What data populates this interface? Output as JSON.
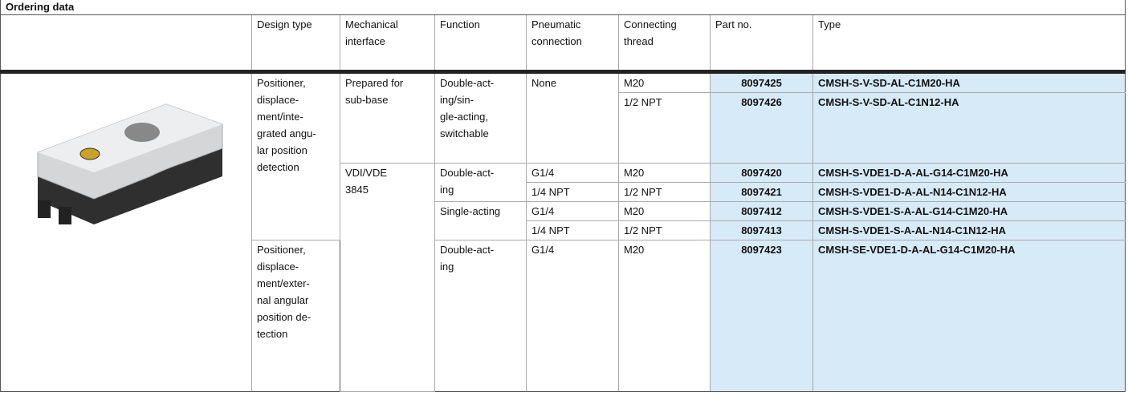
{
  "title": "Ordering data",
  "table": {
    "header": [
      [
        "Design type"
      ],
      [
        "Mechanical",
        "interface"
      ],
      [
        "Function"
      ],
      [
        "Pneumatic",
        "connection"
      ],
      [
        "Connecting",
        "thread"
      ],
      [
        "Part no."
      ],
      [
        "Type"
      ]
    ],
    "design_type": [
      [
        "Positioner,",
        "displace-",
        "ment/inte-",
        "grated angu-",
        "lar position",
        "detection"
      ],
      [
        "Positioner,",
        "displace-",
        "ment/exter-",
        "nal angular",
        "position de-",
        "tection"
      ]
    ],
    "mechanical_interface": [
      [
        "Prepared for",
        "sub-base"
      ],
      [
        "VDI/VDE",
        "3845"
      ]
    ],
    "function": [
      [
        "Double-act-",
        "ing/sin-",
        "gle-acting,",
        "switchable"
      ],
      [
        "Double-act-",
        "ing"
      ],
      [
        "Single-acting"
      ],
      [
        "Double-act-",
        "ing"
      ]
    ],
    "pneumatic_connection": [
      "None",
      "G1/4",
      "1/4 NPT",
      "G1/4",
      "1/4 NPT",
      "G1/4"
    ],
    "connecting_thread": [
      "M20",
      "1/2 NPT",
      "M20",
      "1/2 NPT",
      "M20",
      "1/2 NPT",
      "M20"
    ],
    "part_no": [
      "8097425",
      "8097426",
      "8097420",
      "8097421",
      "8097412",
      "8097413",
      "8097423"
    ],
    "type": [
      "CMSH-S-V-SD-AL-C1M20-HA",
      "CMSH-S-V-SD-AL-C1N12-HA",
      "CMSH-S-VDE1-D-A-AL-G14-C1M20-HA",
      "CMSH-S-VDE1-D-A-AL-N14-C1N12-HA",
      "CMSH-S-VDE1-S-A-AL-G14-C1M20-HA",
      "CMSH-S-VDE1-S-A-AL-N14-C1N12-HA",
      "CMSH-SE-VDE1-D-A-AL-G14-C1M20-HA"
    ]
  }
}
